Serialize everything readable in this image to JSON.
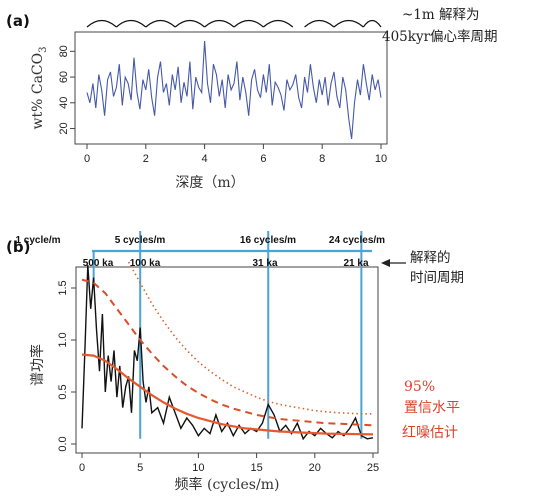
{
  "colors": {
    "series_blue": "#4659a8",
    "period_line": "#4ba3d6",
    "red_noise": "#e8582d",
    "conf_95": "#d94f2a",
    "conf_dotted": "#d9642e",
    "annotation_red": "#d9432a"
  },
  "chart_data": [
    {
      "type": "line",
      "panel": "(a)",
      "xlabel": "深度（m）",
      "ylabel": "wt% CaCO3",
      "xlim": [
        -0.3,
        10
      ],
      "ylim": [
        8,
        95
      ],
      "xticks": [
        "0",
        "2",
        "4",
        "6",
        "8",
        "10"
      ],
      "yticks": [
        "20",
        "40",
        "60",
        "80"
      ],
      "annotation": [
        "~1m 解释为",
        "405kyr偏心率周期"
      ],
      "arc_segments_m": [
        [
          0,
          1
        ],
        [
          1,
          2
        ],
        [
          2,
          3
        ],
        [
          3,
          4
        ],
        [
          4,
          5
        ],
        [
          5,
          6
        ],
        [
          6,
          7
        ],
        [
          7.4,
          8.4
        ],
        [
          8.4,
          9.4
        ],
        [
          9.4,
          10
        ]
      ],
      "series": [
        {
          "depth_m": [
            0,
            0.1,
            0.2,
            0.3,
            0.4,
            0.5,
            0.6,
            0.7,
            0.8,
            0.9,
            1,
            1.1,
            1.2,
            1.3,
            1.4,
            1.5,
            1.6,
            1.7,
            1.8,
            1.9,
            2,
            2.1,
            2.2,
            2.3,
            2.4,
            2.5,
            2.6,
            2.7,
            2.8,
            2.9,
            3,
            3.1,
            3.2,
            3.3,
            3.4,
            3.5,
            3.6,
            3.7,
            3.8,
            3.9,
            4,
            4.1,
            4.2,
            4.3,
            4.4,
            4.5,
            4.6,
            4.7,
            4.8,
            4.9,
            5,
            5.1,
            5.2,
            5.3,
            5.4,
            5.5,
            5.6,
            5.7,
            5.8,
            5.9,
            6,
            6.1,
            6.2,
            6.3,
            6.4,
            6.5,
            6.6,
            6.7,
            6.8,
            6.9,
            7,
            7.1,
            7.2,
            7.3,
            7.4,
            7.5,
            7.6,
            7.7,
            7.8,
            7.9,
            8,
            8.1,
            8.2,
            8.3,
            8.4,
            8.5,
            8.6,
            8.7,
            8.8,
            8.9,
            9,
            9.1,
            9.2,
            9.3,
            9.4,
            9.5,
            9.6,
            9.7,
            9.8,
            9.9,
            10
          ],
          "wt_caco3": [
            48,
            40,
            55,
            36,
            62,
            50,
            30,
            58,
            64,
            45,
            52,
            70,
            38,
            60,
            55,
            42,
            75,
            48,
            35,
            58,
            50,
            66,
            44,
            30,
            60,
            72,
            48,
            55,
            38,
            62,
            50,
            68,
            40,
            56,
            45,
            72,
            35,
            60,
            52,
            48,
            88,
            55,
            40,
            70,
            62,
            45,
            58,
            36,
            62,
            50,
            55,
            72,
            42,
            60,
            48,
            30,
            58,
            66,
            50,
            44,
            62,
            48,
            70,
            38,
            56,
            52,
            46,
            34,
            58,
            50,
            54,
            62,
            44,
            36,
            60,
            48,
            70,
            52,
            40,
            58,
            46,
            60,
            38,
            55,
            64,
            45,
            36,
            60,
            50,
            28,
            12,
            40,
            58,
            46,
            70,
            55,
            42,
            62,
            50,
            58,
            44
          ]
        }
      ]
    },
    {
      "type": "line",
      "panel": "(b)",
      "xlabel": "频率 (cycles/m)",
      "ylabel": "谱功率",
      "xlim": [
        -1,
        25.5
      ],
      "ylim": [
        -0.05,
        1.8
      ],
      "xticks": [
        "0",
        "5",
        "10",
        "15",
        "20",
        "25"
      ],
      "yticks": [
        "0.0",
        "0.5",
        "1.0",
        "1.5"
      ],
      "period_markers": [
        {
          "label": "1 cycle/m",
          "period": "500 ka",
          "freq": 1
        },
        {
          "label": "5 cycles/m",
          "period": "100 ka",
          "freq": 5
        },
        {
          "label": "16 cycles/m",
          "period": "31 ka",
          "freq": 16
        },
        {
          "label": "24 cycles/m",
          "period": "21 ka",
          "freq": 24
        }
      ],
      "annotations": {
        "period_arrow": [
          "解释的",
          "时间周期"
        ],
        "confidence": [
          "95%",
          "置信水平"
        ],
        "red_noise": "红噪估计"
      },
      "series": [
        {
          "name": "spectrum",
          "freq": [
            0,
            0.25,
            0.5,
            0.75,
            1,
            1.25,
            1.5,
            1.75,
            2,
            2.25,
            2.5,
            2.75,
            3,
            3.25,
            3.5,
            3.75,
            4,
            4.25,
            4.5,
            4.75,
            5,
            5.25,
            5.5,
            5.75,
            6,
            6.5,
            7,
            7.5,
            8,
            8.5,
            9,
            9.5,
            10,
            10.5,
            11,
            11.5,
            12,
            12.5,
            13,
            13.5,
            14,
            14.5,
            15,
            15.5,
            16,
            16.5,
            17,
            17.5,
            18,
            18.5,
            19,
            19.5,
            20,
            20.5,
            21,
            21.5,
            22,
            22.5,
            23,
            23.5,
            24,
            24.5,
            25
          ],
          "power": [
            0.15,
            0.9,
            1.72,
            1.3,
            1.6,
            1.1,
            0.7,
            1.25,
            0.5,
            0.85,
            0.6,
            0.9,
            0.45,
            0.75,
            0.35,
            0.55,
            0.65,
            0.3,
            0.9,
            0.8,
            1.12,
            0.6,
            0.4,
            0.55,
            0.3,
            0.35,
            0.2,
            0.45,
            0.3,
            0.15,
            0.25,
            0.18,
            0.08,
            0.15,
            0.1,
            0.28,
            0.12,
            0.2,
            0.08,
            0.18,
            0.1,
            0.15,
            0.12,
            0.2,
            0.38,
            0.28,
            0.12,
            0.18,
            0.1,
            0.2,
            0.05,
            0.12,
            0.08,
            0.15,
            0.1,
            0.06,
            0.12,
            0.08,
            0.15,
            0.25,
            0.08,
            0.05,
            0.06
          ]
        },
        {
          "name": "red_noise",
          "freq": [
            0,
            1,
            2,
            3,
            4,
            5,
            6,
            7,
            8,
            9,
            10,
            11,
            12,
            13,
            14,
            15,
            16,
            17,
            18,
            19,
            20,
            21,
            22,
            23,
            24,
            25
          ],
          "power": [
            0.86,
            0.85,
            0.8,
            0.72,
            0.63,
            0.55,
            0.47,
            0.4,
            0.34,
            0.29,
            0.25,
            0.22,
            0.19,
            0.17,
            0.15,
            0.14,
            0.13,
            0.12,
            0.115,
            0.11,
            0.105,
            0.1,
            0.098,
            0.096,
            0.094,
            0.092
          ]
        },
        {
          "name": "conf_95",
          "freq": [
            0,
            1,
            2,
            3,
            4,
            5,
            6,
            7,
            8,
            9,
            10,
            11,
            12,
            13,
            14,
            15,
            16,
            17,
            18,
            19,
            20,
            21,
            22,
            23,
            24,
            25
          ],
          "power": [
            1.58,
            1.55,
            1.45,
            1.3,
            1.15,
            1.0,
            0.87,
            0.75,
            0.65,
            0.56,
            0.49,
            0.43,
            0.38,
            0.34,
            0.31,
            0.28,
            0.26,
            0.24,
            0.23,
            0.22,
            0.21,
            0.2,
            0.195,
            0.19,
            0.185,
            0.18
          ]
        },
        {
          "name": "conf_dotted",
          "freq": [
            4,
            5,
            6,
            7,
            8,
            9,
            10,
            11,
            12,
            13,
            14,
            15,
            16,
            17,
            18,
            19,
            20,
            21,
            22,
            23,
            24,
            25
          ],
          "power": [
            1.75,
            1.55,
            1.35,
            1.18,
            1.03,
            0.9,
            0.79,
            0.7,
            0.62,
            0.55,
            0.5,
            0.45,
            0.41,
            0.38,
            0.36,
            0.34,
            0.32,
            0.31,
            0.3,
            0.295,
            0.29,
            0.29
          ]
        }
      ]
    }
  ]
}
